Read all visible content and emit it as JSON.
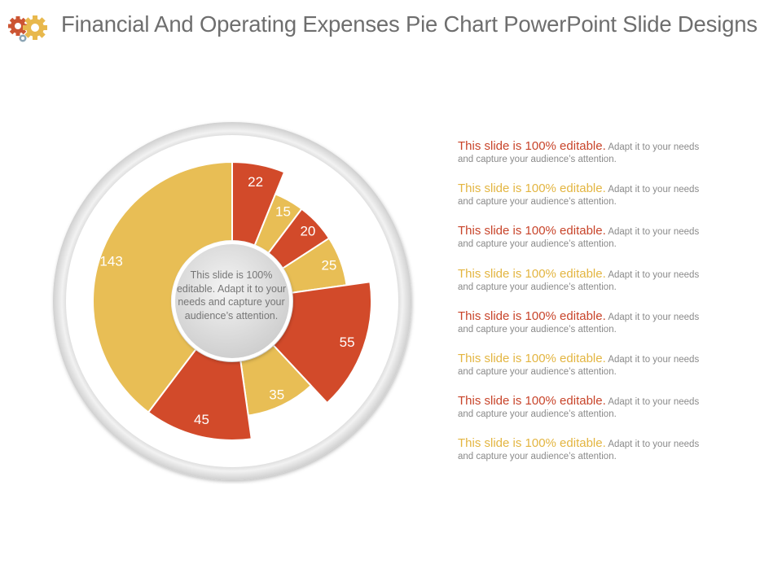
{
  "slide": {
    "title": "Financial And Operating Expenses Pie Chart PowerPoint Slide Designs",
    "icon": "gears-icon"
  },
  "colors": {
    "red": "#d24a2a",
    "yellow": "#e8be55",
    "ring": "#d8d8d8",
    "center": "#d2d2d2"
  },
  "center_text": "This slide is 100% editable. Adapt it to your needs and capture your audience’s attention.",
  "items": [
    {
      "head": "This slide is 100% editable.",
      "body1": "Adapt it to your needs",
      "body2": "and capture your audience’s attention.",
      "color": "#c8442a"
    },
    {
      "head": "This slide is 100% editable.",
      "body1": "Adapt it to your needs",
      "body2": "and capture your audience’s attention.",
      "color": "#e3b541"
    },
    {
      "head": "This slide is 100% editable.",
      "body1": "Adapt it to your needs",
      "body2": "and capture your audience’s attention.",
      "color": "#c8442a"
    },
    {
      "head": "This slide is 100% editable.",
      "body1": "Adapt it to your needs",
      "body2": "and capture your audience’s attention.",
      "color": "#e3b541"
    },
    {
      "head": "This slide is 100% editable.",
      "body1": "Adapt it to your needs",
      "body2": "and capture your audience’s attention.",
      "color": "#c8442a"
    },
    {
      "head": "This slide is 100% editable.",
      "body1": "Adapt it to your needs",
      "body2": "and capture your audience’s attention.",
      "color": "#e3b541"
    },
    {
      "head": "This slide is 100% editable.",
      "body1": "Adapt it to your needs",
      "body2": "and capture your audience’s attention.",
      "color": "#c8442a"
    },
    {
      "head": "This slide is 100% editable.",
      "body1": "Adapt it to your needs",
      "body2": "and capture your audience’s attention.",
      "color": "#e3b541"
    }
  ],
  "chart_data": {
    "type": "pie",
    "title": "",
    "values": [
      22,
      15,
      20,
      25,
      55,
      35,
      45,
      143
    ],
    "labels": [
      "22",
      "15",
      "20",
      "25",
      "55",
      "35",
      "45",
      "143"
    ],
    "colors": [
      "#d24a2a",
      "#e8be55",
      "#d24a2a",
      "#e8be55",
      "#d24a2a",
      "#e8be55",
      "#d24a2a",
      "#e8be55"
    ],
    "outer_radii": [
      1.0,
      0.83,
      0.83,
      0.83,
      1.0,
      0.83,
      1.0,
      1.0
    ],
    "start": "top",
    "direction": "clockwise",
    "donut": true
  }
}
